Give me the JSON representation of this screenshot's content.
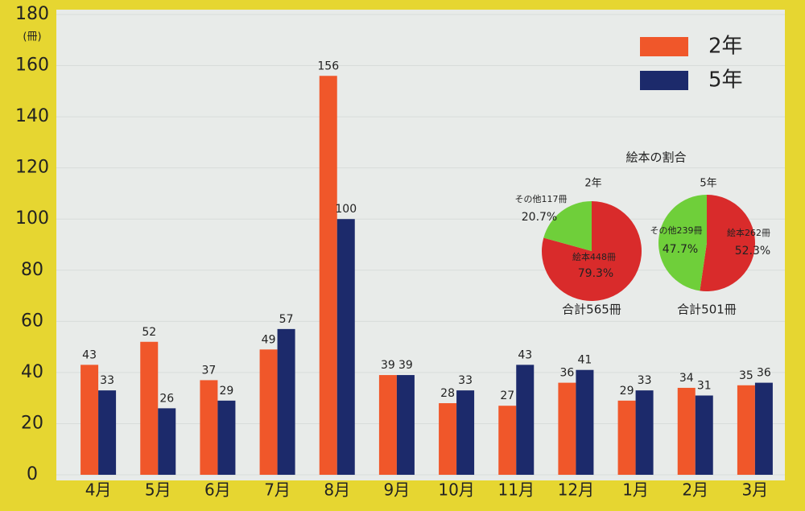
{
  "chart_data": [
    {
      "type": "bar",
      "y_unit": "(冊)",
      "categories": [
        "4月",
        "5月",
        "6月",
        "7月",
        "8月",
        "9月",
        "10月",
        "11月",
        "12月",
        "1月",
        "2月",
        "3月"
      ],
      "series": [
        {
          "name": "2年",
          "color": "#f0572a",
          "values": [
            43,
            52,
            37,
            49,
            156,
            39,
            28,
            27,
            36,
            29,
            34,
            35
          ]
        },
        {
          "name": "5年",
          "color": "#1c2a6b",
          "values": [
            33,
            26,
            29,
            57,
            100,
            39,
            33,
            43,
            41,
            33,
            31,
            36
          ]
        }
      ],
      "ylim": [
        0,
        180
      ],
      "yticks": [
        0,
        20,
        40,
        60,
        80,
        100,
        120,
        140,
        160,
        180
      ],
      "grid": true,
      "legend": "top-right"
    },
    {
      "type": "pie",
      "title": "2年",
      "categories": [
        "絵本448冊",
        "その他117冊"
      ],
      "values": [
        79.3,
        20.7
      ],
      "value_labels": [
        "79.3%",
        "20.7%"
      ],
      "colors": [
        "#d92b2b",
        "#6fcf3a"
      ],
      "total_label": "合計565冊"
    },
    {
      "type": "pie",
      "title": "5年",
      "categories": [
        "絵本262冊",
        "その他239冊"
      ],
      "values": [
        52.3,
        47.7
      ],
      "value_labels": [
        "52.3%",
        "47.7%"
      ],
      "colors": [
        "#d92b2b",
        "#6fcf3a"
      ],
      "total_label": "合計501冊"
    }
  ],
  "pies_title": "絵本の割合"
}
